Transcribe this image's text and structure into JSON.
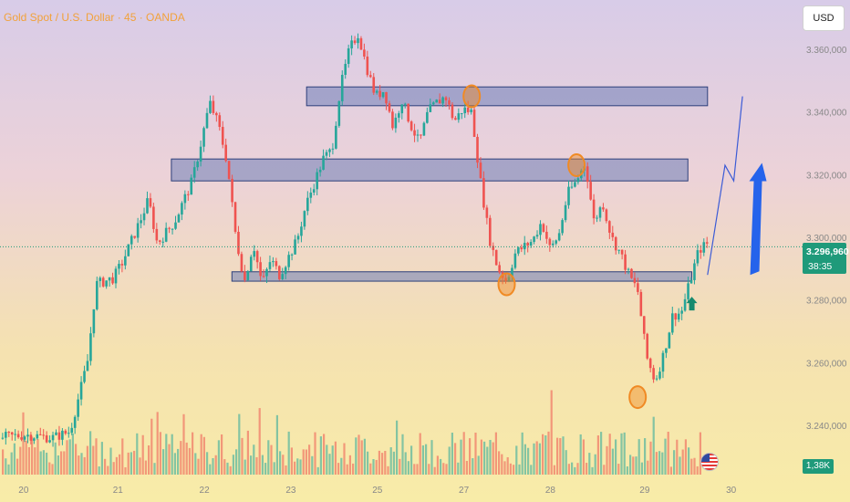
{
  "header": {
    "title": "Gold Spot / U.S. Dollar · 45 · OANDA"
  },
  "toolbar": {
    "currency_button": "USD"
  },
  "price_label": {
    "price": "3.296,960",
    "countdown": "38:35"
  },
  "volume_label": "1,38K",
  "colors": {
    "up": "#26a69a",
    "down": "#ef5350",
    "zone_fill": "#6f7fb8",
    "circle": "#f08a24",
    "projection": "#3b5bd6",
    "accent_arrow": "#2563eb",
    "marker_arrow": "#168a6e"
  },
  "chart_data": {
    "type": "candlestick",
    "title": "Gold Spot / U.S. Dollar · 45 · OANDA",
    "x_ticks": [
      "20",
      "21",
      "22",
      "23",
      "25",
      "27",
      "28",
      "29",
      "30"
    ],
    "y_ticks": [
      "3.360,000",
      "3.340,000",
      "3.320,000",
      "3.300,000",
      "3.280,000",
      "3.260,000",
      "3.240,000"
    ],
    "ylim": [
      3233,
      3367
    ],
    "current_price": 3296.96,
    "price_path": [
      [
        0,
        3236
      ],
      [
        3,
        3237
      ],
      [
        6,
        3236
      ],
      [
        8,
        3238
      ],
      [
        10,
        3260
      ],
      [
        11,
        3285
      ],
      [
        13,
        3287
      ],
      [
        14,
        3292
      ],
      [
        16,
        3305
      ],
      [
        17,
        3312
      ],
      [
        18,
        3298
      ],
      [
        20,
        3305
      ],
      [
        22,
        3318
      ],
      [
        23,
        3330
      ],
      [
        24,
        3343
      ],
      [
        25,
        3336
      ],
      [
        26,
        3324
      ],
      [
        27,
        3300
      ],
      [
        28,
        3286
      ],
      [
        29,
        3298
      ],
      [
        30,
        3285
      ],
      [
        31,
        3293
      ],
      [
        32,
        3288
      ],
      [
        34,
        3299
      ],
      [
        35,
        3310
      ],
      [
        37,
        3325
      ],
      [
        38,
        3328
      ],
      [
        39,
        3348
      ],
      [
        40,
        3360
      ],
      [
        41,
        3365
      ],
      [
        42,
        3354
      ],
      [
        43,
        3345
      ],
      [
        44,
        3347
      ],
      [
        45,
        3335
      ],
      [
        46,
        3344
      ],
      [
        47,
        3336
      ],
      [
        48,
        3330
      ],
      [
        49,
        3340
      ],
      [
        50,
        3343
      ],
      [
        51,
        3345
      ],
      [
        52,
        3337
      ],
      [
        53,
        3341
      ],
      [
        54,
        3340
      ],
      [
        55,
        3318
      ],
      [
        56,
        3300
      ],
      [
        57,
        3290
      ],
      [
        58,
        3286
      ],
      [
        59,
        3295
      ],
      [
        60,
        3297
      ],
      [
        61,
        3299
      ],
      [
        62,
        3305
      ],
      [
        63,
        3296
      ],
      [
        64,
        3301
      ],
      [
        65,
        3314
      ],
      [
        66,
        3318
      ],
      [
        67,
        3324
      ],
      [
        68,
        3305
      ],
      [
        69,
        3311
      ],
      [
        70,
        3300
      ],
      [
        71,
        3295
      ],
      [
        72,
        3288
      ],
      [
        73,
        3283
      ],
      [
        74,
        3262
      ],
      [
        75,
        3254
      ],
      [
        76,
        3263
      ],
      [
        77,
        3275
      ],
      [
        78,
        3276
      ],
      [
        79,
        3286
      ],
      [
        80,
        3296
      ],
      [
        81,
        3298
      ]
    ],
    "zones": [
      {
        "from": 3342,
        "to": 3348
      },
      {
        "from": 3318,
        "to": 3325
      },
      {
        "from": 3286,
        "to": 3289
      }
    ],
    "marked_points": [
      {
        "x": 54,
        "y": 3345
      },
      {
        "x": 66,
        "y": 3323
      },
      {
        "x": 58,
        "y": 3285
      },
      {
        "x": 73,
        "y": 3249
      }
    ],
    "projection": [
      [
        81,
        3288
      ],
      [
        83,
        3323
      ],
      [
        84,
        3318
      ],
      [
        85,
        3345
      ]
    ],
    "volume_max_k": 2.0,
    "current_volume": "1,38K",
    "grid": false,
    "legend": "none"
  }
}
